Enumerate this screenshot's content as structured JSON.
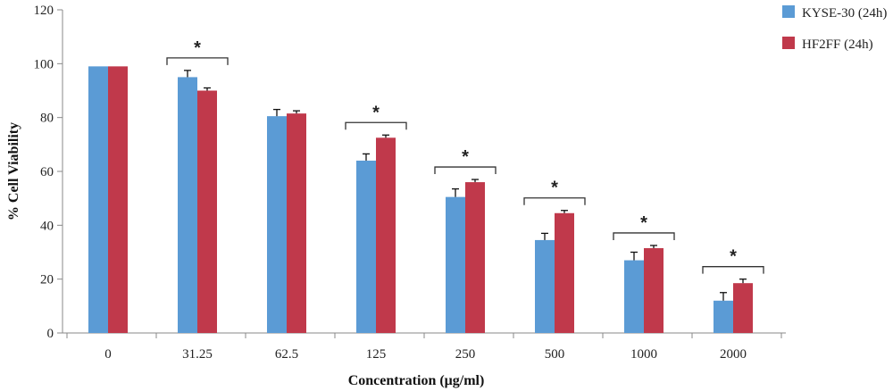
{
  "chart_data": {
    "type": "bar",
    "title": "",
    "xlabel": "Concentration (μg/ml)",
    "ylabel": "% Cell Viability",
    "ylim": [
      0,
      120
    ],
    "yticks": [
      0,
      20,
      40,
      60,
      80,
      100,
      120
    ],
    "categories": [
      "0",
      "31.25",
      "62.5",
      "125",
      "250",
      "500",
      "1000",
      "2000"
    ],
    "series": [
      {
        "name": "KYSE-30 (24h)",
        "color": "#5b9bd5",
        "values": [
          99,
          95,
          80.5,
          64,
          50.5,
          34.5,
          27,
          12
        ],
        "errors": [
          0,
          2.5,
          2.5,
          2.5,
          3,
          2.5,
          3,
          3
        ]
      },
      {
        "name": "HF2FF (24h)",
        "color": "#c0394b",
        "values": [
          99,
          90,
          81.5,
          72.5,
          56,
          44.5,
          31.5,
          18.5
        ],
        "errors": [
          0,
          1,
          1,
          1,
          1,
          1,
          1,
          1.5
        ]
      }
    ],
    "significance": [
      {
        "category": "31.25",
        "label": "*"
      },
      {
        "category": "125",
        "label": "*"
      },
      {
        "category": "250",
        "label": "*"
      },
      {
        "category": "500",
        "label": "*"
      },
      {
        "category": "1000",
        "label": "*"
      },
      {
        "category": "2000",
        "label": "*"
      }
    ],
    "grid": false,
    "legend_position": "top-right"
  }
}
